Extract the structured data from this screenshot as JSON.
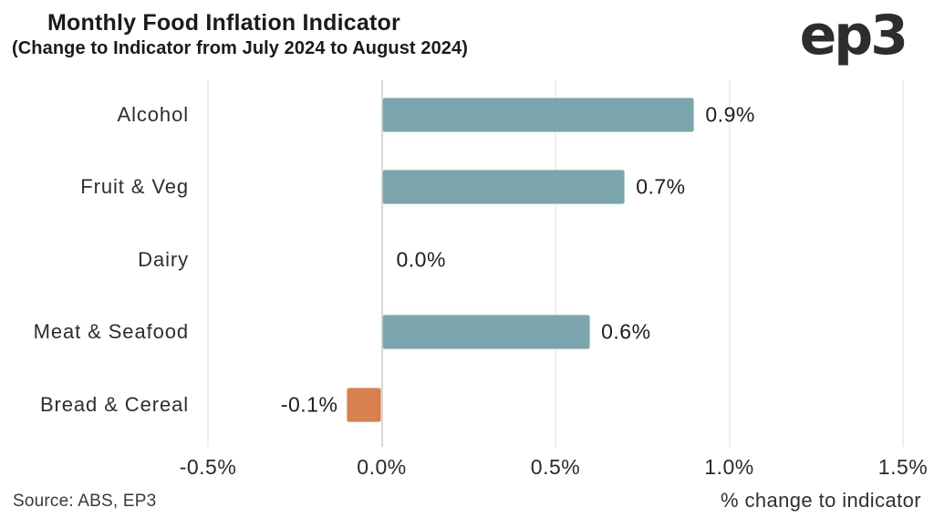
{
  "header": {
    "logo": "ep3"
  },
  "footer": {
    "source": "Source: ABS, EP3"
  },
  "chart_data": {
    "type": "bar",
    "orientation": "horizontal",
    "title": "Monthly Food Inflation Indicator",
    "subtitle": "(Change to Indicator from July 2024 to August 2024)",
    "categories": [
      "Alcohol",
      "Fruit & Veg",
      "Dairy",
      "Meat & Seafood",
      "Bread & Cereal"
    ],
    "values": [
      0.9,
      0.7,
      0.0,
      0.6,
      -0.1
    ],
    "value_labels": [
      "0.9%",
      "0.7%",
      "0.0%",
      "0.6%",
      "-0.1%"
    ],
    "x_ticks": [
      -0.5,
      0.0,
      0.5,
      1.0,
      1.5
    ],
    "x_tick_labels": [
      "-0.5%",
      "0.0%",
      "0.5%",
      "1.0%",
      "1.5%"
    ],
    "xlim": [
      -0.6,
      1.6
    ],
    "xlabel": "% change to indicator",
    "ylabel": "",
    "grid": "vertical-only",
    "legend": "none",
    "colors": {
      "positive_bar": "#7aa5ad",
      "negative_bar": "#d8804f",
      "gridline": "#f1eeeb",
      "zero_line": "#dbd8d5",
      "text": "#1d1d1d"
    }
  }
}
